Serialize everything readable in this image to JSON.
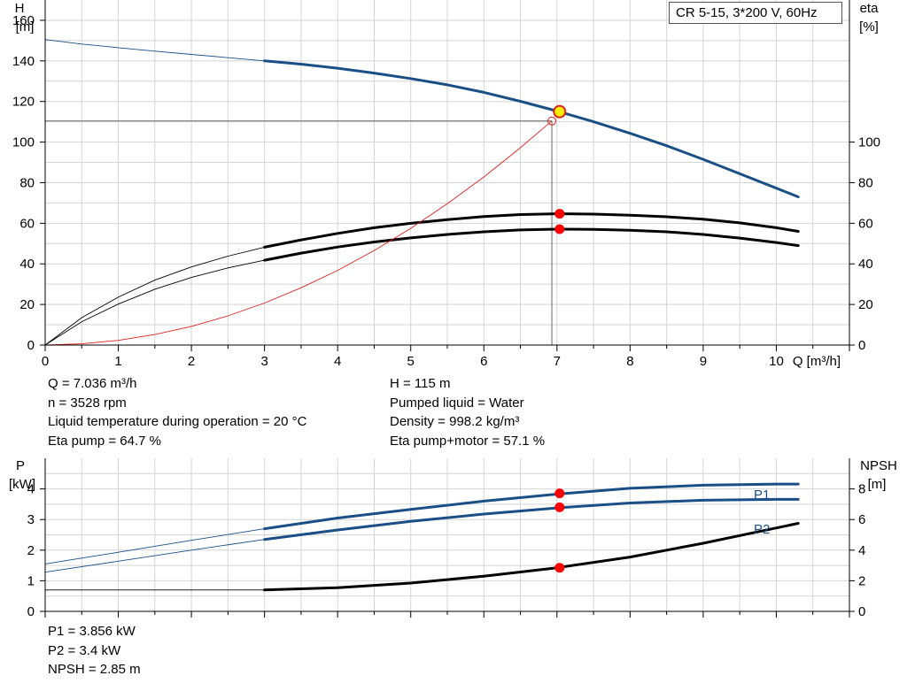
{
  "chart_data": [
    {
      "type": "line",
      "title": "CR 5-15, 3*200 V, 60Hz",
      "xlabel": "Q [m³/h]",
      "x_unit_label": "Q [m³/h]",
      "xlim": [
        0,
        11
      ],
      "x_ticks": [
        "0",
        "1",
        "2",
        "3",
        "4",
        "5",
        "6",
        "7",
        "8",
        "9",
        "10"
      ],
      "y_left_label": "H",
      "y_left_unit": "[m]",
      "y_left_lim": [
        0,
        170
      ],
      "y_left_ticks": [
        "0",
        "20",
        "40",
        "60",
        "80",
        "100",
        "120",
        "140",
        "160"
      ],
      "y_right_label": "eta",
      "y_right_unit": "[%]",
      "y_right_lim": [
        0,
        170
      ],
      "y_right_ticks": [
        "0",
        "20",
        "40",
        "60",
        "80",
        "100"
      ],
      "grid": true,
      "series": [
        {
          "key": "H",
          "color": "#1a4f86",
          "x": [
            0,
            0.5,
            1,
            1.5,
            2,
            2.5,
            3,
            3.5,
            4,
            4.5,
            5,
            5.5,
            6,
            6.5,
            7,
            7.5,
            8,
            8.5,
            9,
            9.5,
            10,
            10.3
          ],
          "y": [
            150.5,
            148.3,
            146.5,
            144.8,
            143.2,
            141.6,
            140,
            138.4,
            136.4,
            134,
            131.3,
            128.2,
            124.5,
            120.1,
            115.3,
            110,
            104.3,
            98.2,
            91.5,
            84.4,
            77.3,
            73
          ],
          "thin_until_x": 3
        },
        {
          "key": "eta_pump",
          "color": "#000000",
          "x": [
            0,
            0.5,
            1,
            1.5,
            2,
            2.5,
            3,
            3.5,
            4,
            4.5,
            5,
            5.5,
            6,
            6.5,
            7,
            7.5,
            8,
            8.5,
            9,
            9.5,
            10,
            10.3
          ],
          "y": [
            0,
            13.5,
            23.6,
            32,
            38.5,
            43.8,
            48.2,
            51.8,
            55,
            57.8,
            60,
            61.8,
            63.3,
            64.3,
            64.7,
            64.5,
            64,
            63.2,
            62,
            60.2,
            57.8,
            56
          ],
          "thin_until_x": 3
        },
        {
          "key": "eta_pump_motor",
          "color": "#000000",
          "x": [
            0,
            0.5,
            1,
            1.5,
            2,
            2.5,
            3,
            3.5,
            4,
            4.5,
            5,
            5.5,
            6,
            6.5,
            7,
            7.5,
            8,
            8.5,
            9,
            9.5,
            10,
            10.3
          ],
          "y": [
            0,
            11.5,
            20.2,
            27.5,
            33.3,
            38,
            41.8,
            45.3,
            48.3,
            50.8,
            52.8,
            54.5,
            55.8,
            56.7,
            57.1,
            57,
            56.6,
            55.8,
            54.5,
            52.7,
            50.5,
            49
          ],
          "thin_until_x": 3
        },
        {
          "key": "system_curve",
          "color": "#e02020",
          "x": [
            0,
            0.5,
            1,
            1.5,
            2,
            2.5,
            3,
            3.5,
            4,
            4.5,
            5,
            5.5,
            6,
            6.5,
            6.93
          ],
          "y": [
            0,
            0.6,
            2.3,
            5.2,
            9.2,
            14.4,
            20.7,
            28.2,
            36.8,
            46.6,
            57.5,
            69.6,
            82.8,
            97.2,
            110.4
          ]
        }
      ],
      "operating_points": [
        {
          "key": "H",
          "x": 7.036,
          "y": 115,
          "fill": "#ffee00"
        },
        {
          "key": "eta_pump",
          "x": 7.036,
          "y": 64.7,
          "fill": "#ff0000"
        },
        {
          "key": "eta_pump_motor",
          "x": 7.036,
          "y": 57.1,
          "fill": "#ff0000"
        },
        {
          "key": "system_curve",
          "x": 6.93,
          "y": 110.4,
          "fill": "none"
        }
      ],
      "reference_lines": {
        "x": 6.93,
        "y": 110.4
      }
    },
    {
      "type": "line",
      "xlim": [
        0,
        11
      ],
      "y_left_label": "P",
      "y_left_unit": "[kW]",
      "y_left_lim": [
        0,
        5
      ],
      "y_left_ticks": [
        "0",
        "1",
        "2",
        "3",
        "4"
      ],
      "y_right_label": "NPSH",
      "y_right_unit": "[m]",
      "y_right_lim": [
        0,
        10
      ],
      "y_right_ticks": [
        "0",
        "2",
        "4",
        "6",
        "8"
      ],
      "grid": true,
      "series": [
        {
          "key": "P1",
          "name": "P1",
          "color": "#1a4f86",
          "axis": "left",
          "x": [
            0,
            1,
            2,
            3,
            4,
            5,
            6,
            7,
            8,
            9,
            10,
            10.3
          ],
          "y": [
            1.55,
            1.93,
            2.32,
            2.7,
            3.05,
            3.33,
            3.6,
            3.83,
            4.02,
            4.12,
            4.16,
            4.16
          ],
          "thin_until_x": 3
        },
        {
          "key": "P2",
          "name": "P2",
          "color": "#1a4f86",
          "axis": "left",
          "x": [
            0,
            1,
            2,
            3,
            4,
            5,
            6,
            7,
            8,
            9,
            10,
            10.3
          ],
          "y": [
            1.28,
            1.64,
            2,
            2.35,
            2.66,
            2.94,
            3.18,
            3.38,
            3.54,
            3.63,
            3.66,
            3.66
          ],
          "thin_until_x": 3
        },
        {
          "key": "NPSH",
          "color": "#000000",
          "axis": "right",
          "x": [
            0,
            1,
            2,
            3,
            4,
            5,
            6,
            7,
            8,
            9,
            10,
            10.3
          ],
          "y": [
            1.4,
            1.4,
            1.4,
            1.4,
            1.55,
            1.85,
            2.3,
            2.85,
            3.55,
            4.45,
            5.45,
            5.75
          ],
          "thin_until_x": 3
        }
      ],
      "operating_points": [
        {
          "key": "P1",
          "x": 7.036,
          "y": 3.856,
          "axis": "left",
          "fill": "#ff0000"
        },
        {
          "key": "P2",
          "x": 7.036,
          "y": 3.4,
          "axis": "left",
          "fill": "#ff0000"
        },
        {
          "key": "NPSH",
          "x": 7.036,
          "y": 2.85,
          "axis": "right",
          "fill": "#ff0000"
        }
      ]
    }
  ],
  "info": {
    "q": "Q = 7.036 m³/h",
    "n": "n = 3528 rpm",
    "temp": "Liquid temperature during operation = 20 °C",
    "eta_pump": "Eta pump = 64.7 %",
    "h": "H = 115 m",
    "liquid": "Pumped liquid = Water",
    "density": "Density = 998.2 kg/m³",
    "eta_total": "Eta pump+motor = 57.1 %",
    "p1": "P1 = 3.856 kW",
    "p2": "P2 = 3.4 kW",
    "npsh": "NPSH = 2.85 m"
  }
}
